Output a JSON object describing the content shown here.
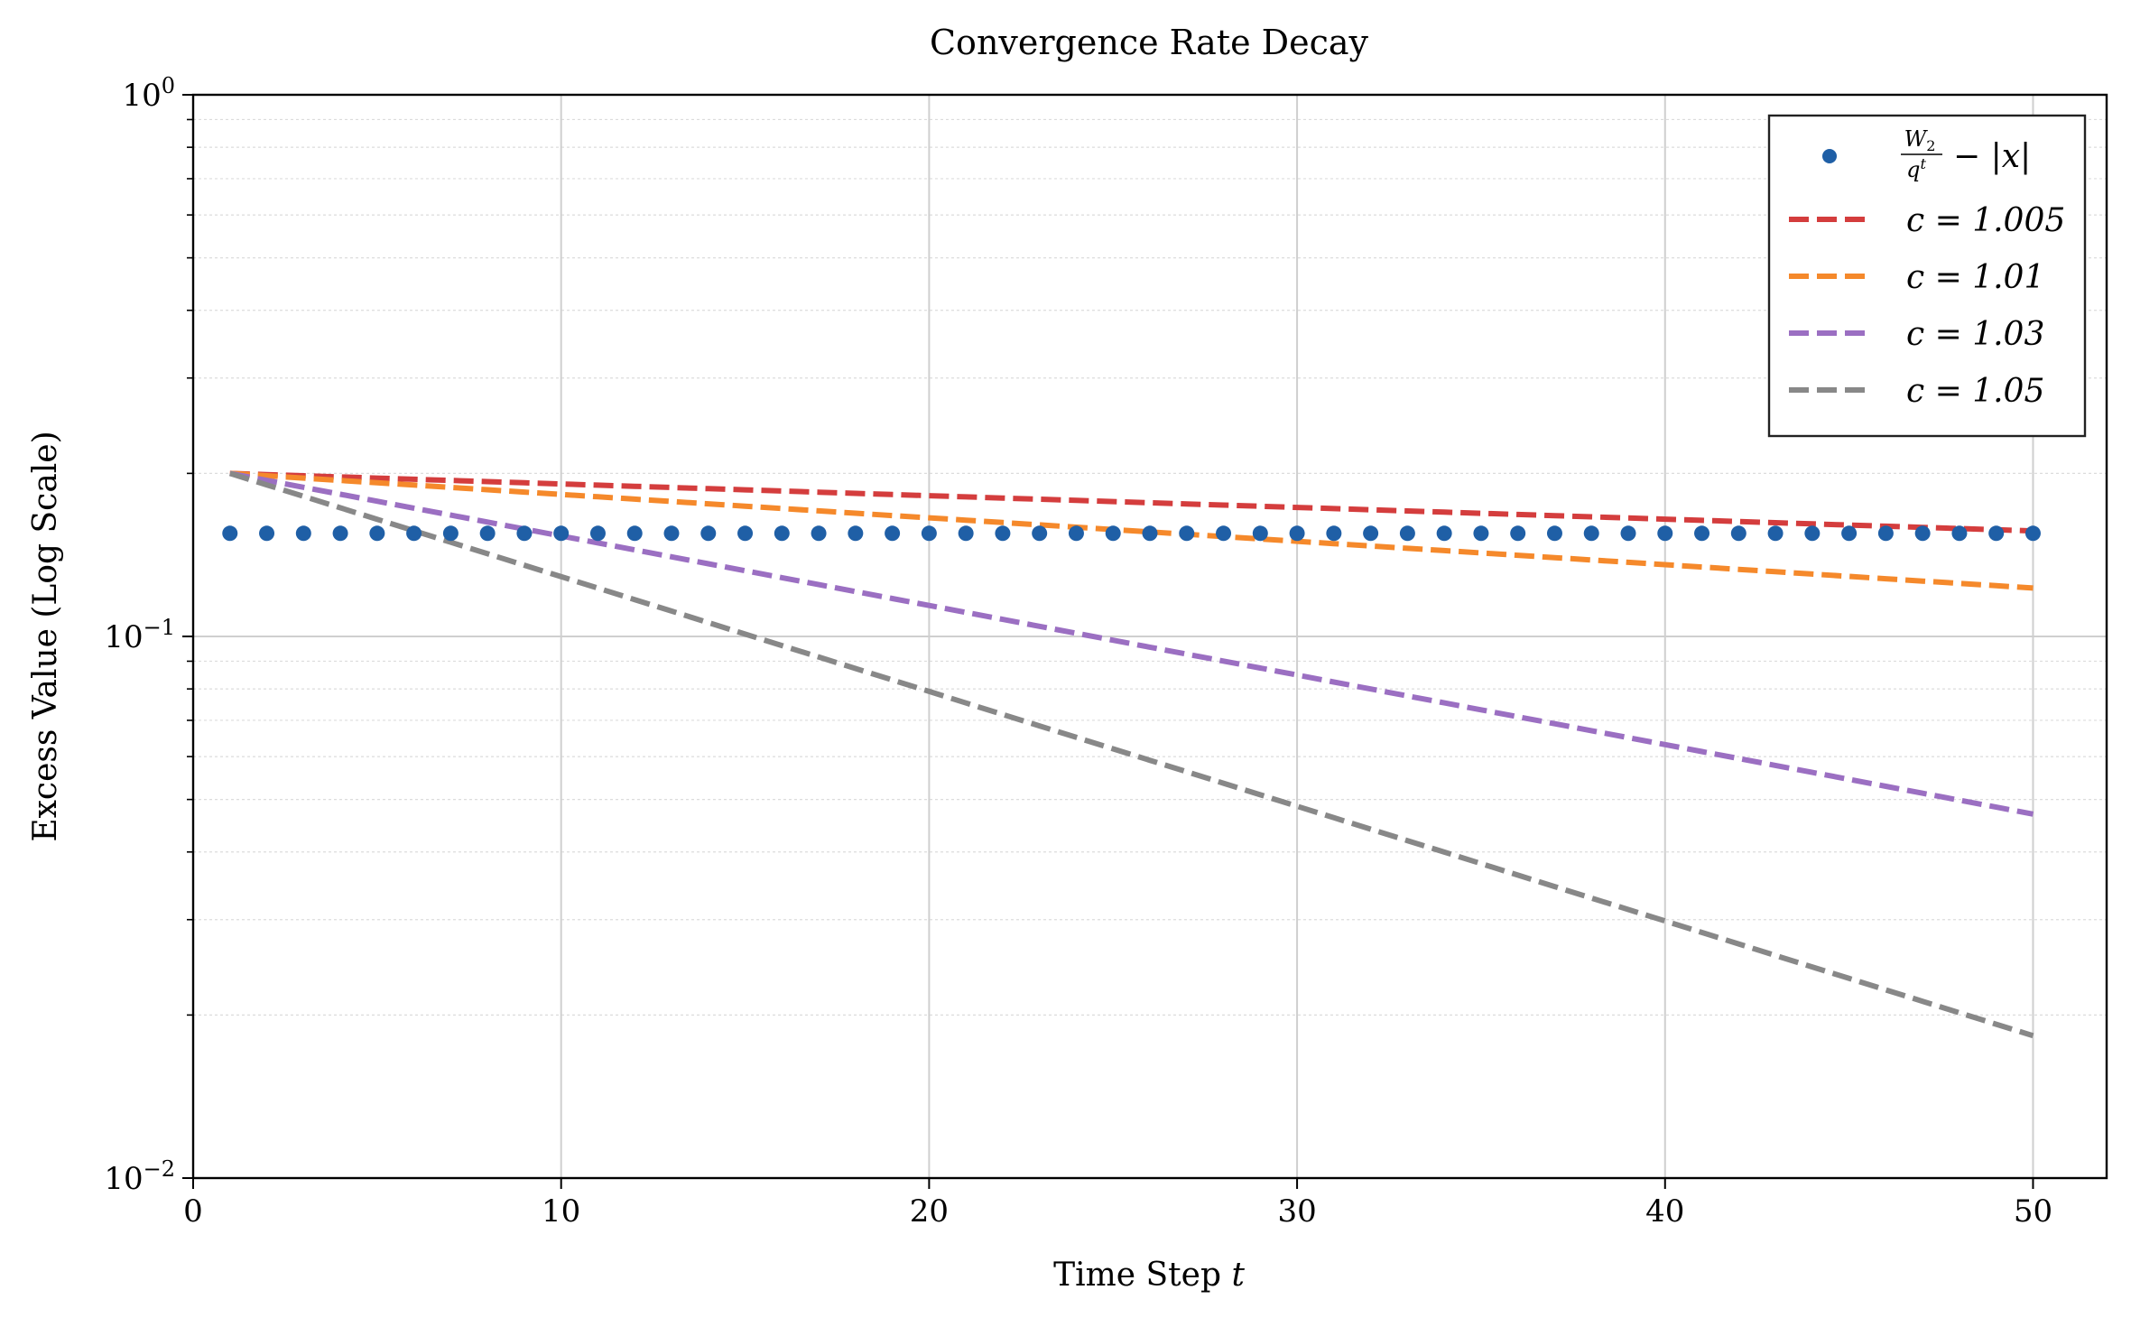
{
  "chart_data": {
    "type": "line",
    "title": "Convergence Rate Decay",
    "xlabel": "Time Step",
    "xlabel_var": "t",
    "ylabel": "Excess Value (Log Scale)",
    "yscale": "log",
    "xlim": [
      0,
      52
    ],
    "ylim": [
      0.01,
      1
    ],
    "x_ticks": [
      0,
      10,
      20,
      30,
      40,
      50
    ],
    "y_ticks": [
      {
        "value": 1,
        "base": "10",
        "exp": "0"
      },
      {
        "value": 0.1,
        "base": "10",
        "exp": "−1"
      },
      {
        "value": 0.01,
        "base": "10",
        "exp": "−2"
      }
    ],
    "grid": true,
    "legend_position": "upper right",
    "series": [
      {
        "name": "W2/q^t − |x|",
        "legend": {
          "num": "W",
          "num_sub": "2",
          "den": "q",
          "den_sup": "t",
          "rest": "− |x|"
        },
        "style": "markers",
        "color": "#1f5fa6",
        "x": [
          1,
          2,
          3,
          4,
          5,
          6,
          7,
          8,
          9,
          10,
          11,
          12,
          13,
          14,
          15,
          16,
          17,
          18,
          19,
          20,
          21,
          22,
          23,
          24,
          25,
          26,
          27,
          28,
          29,
          30,
          31,
          32,
          33,
          34,
          35,
          36,
          37,
          38,
          39,
          40,
          41,
          42,
          43,
          44,
          45,
          46,
          47,
          48,
          49,
          50
        ],
        "values": [
          0.155,
          0.155,
          0.155,
          0.155,
          0.155,
          0.155,
          0.155,
          0.155,
          0.155,
          0.155,
          0.155,
          0.155,
          0.155,
          0.155,
          0.155,
          0.155,
          0.155,
          0.155,
          0.155,
          0.155,
          0.155,
          0.155,
          0.155,
          0.155,
          0.155,
          0.155,
          0.155,
          0.155,
          0.155,
          0.155,
          0.155,
          0.155,
          0.155,
          0.155,
          0.155,
          0.155,
          0.155,
          0.155,
          0.155,
          0.155,
          0.155,
          0.155,
          0.155,
          0.155,
          0.155,
          0.155,
          0.155,
          0.155,
          0.155,
          0.155
        ]
      },
      {
        "name": "c = 1.005",
        "legend_text": "c = 1.005",
        "c": 1.005,
        "style": "dashed",
        "color": "#d43d3d",
        "start_x": 1,
        "end_x": 50,
        "start_value": 0.2
      },
      {
        "name": "c = 1.01",
        "legend_text": "c = 1.01",
        "c": 1.01,
        "style": "dashed",
        "color": "#f5892b",
        "start_x": 1,
        "end_x": 50,
        "start_value": 0.2
      },
      {
        "name": "c = 1.03",
        "legend_text": "c = 1.03",
        "c": 1.03,
        "style": "dashed",
        "color": "#9b6fc2",
        "start_x": 1,
        "end_x": 50,
        "start_value": 0.2
      },
      {
        "name": "c = 1.05",
        "legend_text": "c = 1.05",
        "c": 1.05,
        "style": "dashed",
        "color": "#888888",
        "start_x": 1,
        "end_x": 50,
        "start_value": 0.2
      }
    ]
  }
}
